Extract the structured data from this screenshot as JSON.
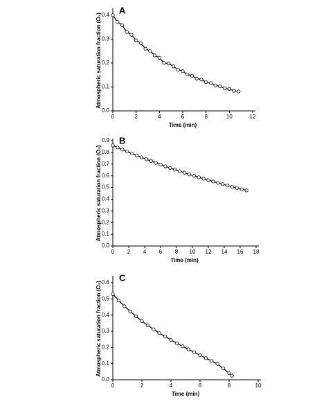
{
  "chart_data": [
    {
      "type": "scatter",
      "panel_label": "A",
      "xlabel": "Time (min)",
      "ylabel": "Atmospheric saturation fraction (O₂)",
      "color": "#000000",
      "xlim": [
        0,
        12
      ],
      "ylim": [
        0,
        0.42
      ],
      "xticks": [
        0,
        2,
        4,
        6,
        8,
        10,
        12
      ],
      "yticks": [
        {
          "value": 0,
          "label": "0.0"
        },
        0.1,
        0.2,
        0.3,
        0.4
      ],
      "x": [
        0,
        0.4,
        0.8,
        1.2,
        1.6,
        2.0,
        2.4,
        2.8,
        3.2,
        3.6,
        4.0,
        4.4,
        4.8,
        5.2,
        5.6,
        6.0,
        6.4,
        6.8,
        7.2,
        7.6,
        8.0,
        8.4,
        8.8,
        9.2,
        9.6,
        10.0,
        10.4,
        10.8
      ],
      "values": [
        0.4,
        0.372,
        0.358,
        0.33,
        0.318,
        0.295,
        0.283,
        0.26,
        0.25,
        0.232,
        0.222,
        0.2,
        0.198,
        0.186,
        0.172,
        0.166,
        0.152,
        0.147,
        0.135,
        0.131,
        0.12,
        0.116,
        0.106,
        0.103,
        0.094,
        0.092,
        0.084,
        0.081
      ]
    },
    {
      "type": "scatter",
      "panel_label": "B",
      "xlabel": "Time (min)",
      "ylabel": "Atmospheric saturation fraction (O₂)",
      "color": "#000000",
      "xlim": [
        0,
        18
      ],
      "ylim": [
        0,
        0.9
      ],
      "xticks": [
        0,
        2,
        4,
        6,
        8,
        10,
        12,
        14,
        16,
        18
      ],
      "yticks": [
        {
          "value": 0,
          "label": "0.0"
        },
        0.1,
        0.2,
        0.3,
        0.4,
        0.5,
        0.6,
        0.7,
        0.8,
        0.9
      ],
      "x": [
        0,
        0.6,
        1.2,
        1.8,
        2.4,
        3.0,
        3.6,
        4.2,
        4.8,
        5.4,
        6.0,
        6.6,
        7.2,
        7.8,
        8.4,
        9.0,
        9.6,
        10.2,
        10.8,
        11.4,
        12.0,
        12.6,
        13.2,
        13.8,
        14.4,
        15.0,
        15.6,
        16.2,
        16.8
      ],
      "values": [
        0.86,
        0.842,
        0.824,
        0.807,
        0.79,
        0.774,
        0.757,
        0.741,
        0.726,
        0.711,
        0.696,
        0.681,
        0.667,
        0.653,
        0.639,
        0.626,
        0.612,
        0.6,
        0.587,
        0.575,
        0.563,
        0.551,
        0.539,
        0.528,
        0.517,
        0.506,
        0.496,
        0.485,
        0.475
      ]
    },
    {
      "type": "scatter",
      "panel_label": "C",
      "xlabel": "Time (min)",
      "ylabel": "Atmospheric saturation fraction (O₂)",
      "color": "#000000",
      "xlim": [
        0,
        10
      ],
      "ylim": [
        0,
        0.63
      ],
      "xticks": [
        0,
        2,
        4,
        6,
        8,
        10
      ],
      "yticks": [
        {
          "value": 0,
          "label": "0.0"
        },
        0.1,
        0.2,
        0.3,
        0.4,
        0.5,
        0.6
      ],
      "x": [
        0,
        0.4,
        0.8,
        1.2,
        1.6,
        2.0,
        2.4,
        2.8,
        3.2,
        3.6,
        4.0,
        4.4,
        4.8,
        5.2,
        5.6,
        6.0,
        6.4,
        6.8,
        7.2,
        7.6,
        8.0,
        8.2
      ],
      "values": [
        0.53,
        0.49,
        0.455,
        0.422,
        0.392,
        0.363,
        0.337,
        0.312,
        0.289,
        0.267,
        0.246,
        0.226,
        0.207,
        0.188,
        0.17,
        0.152,
        0.134,
        0.116,
        0.098,
        0.07,
        0.04,
        0.025
      ]
    }
  ]
}
